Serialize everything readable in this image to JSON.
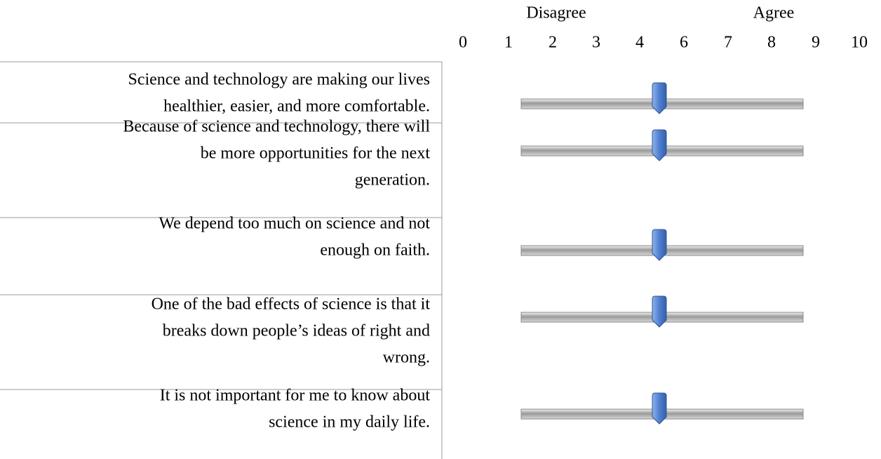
{
  "header": {
    "left_label": "Disagree",
    "right_label": "Agree",
    "scale": [
      "0",
      "1",
      "2",
      "3",
      "4",
      "6",
      "7",
      "8",
      "9",
      "10"
    ]
  },
  "items": [
    {
      "lines": [
        "Science and technology are making our lives",
        "healthier, easier, and more comfortable."
      ]
    },
    {
      "lines": [
        "Because of science and technology, there will",
        "be more opportunities for the next",
        "generation."
      ]
    },
    {
      "lines": [
        "We depend too much on science and not",
        "enough on faith."
      ]
    },
    {
      "lines": [
        "One of the bad effects of science is that it",
        "breaks down people’s ideas of right and",
        "wrong."
      ]
    },
    {
      "lines": [
        "It is not important for me to know about",
        "science in my daily life."
      ]
    }
  ]
}
